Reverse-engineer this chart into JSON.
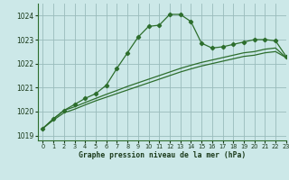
{
  "title": "Graphe pression niveau de la mer (hPa)",
  "background_color": "#cce8e8",
  "grid_color": "#99bbbb",
  "line_color": "#2d6e2d",
  "xlim": [
    -0.5,
    23
  ],
  "ylim": [
    1018.8,
    1024.5
  ],
  "yticks": [
    1019,
    1020,
    1021,
    1022,
    1023,
    1024
  ],
  "xticks": [
    0,
    1,
    2,
    3,
    4,
    5,
    6,
    7,
    8,
    9,
    10,
    11,
    12,
    13,
    14,
    15,
    16,
    17,
    18,
    19,
    20,
    21,
    22,
    23
  ],
  "series1_x": [
    0,
    1,
    2,
    3,
    4,
    5,
    6,
    7,
    8,
    9,
    10,
    11,
    12,
    13,
    14,
    15,
    16,
    17,
    18,
    19,
    20,
    21,
    22,
    23
  ],
  "series1_y": [
    1019.3,
    1019.7,
    1020.05,
    1020.3,
    1020.55,
    1020.75,
    1021.1,
    1021.8,
    1022.45,
    1023.1,
    1023.55,
    1023.6,
    1024.05,
    1024.05,
    1023.75,
    1022.85,
    1022.65,
    1022.7,
    1022.8,
    1022.9,
    1023.0,
    1023.0,
    1022.95,
    1022.3
  ],
  "series2_x": [
    0,
    1,
    2,
    3,
    4,
    5,
    6,
    7,
    8,
    9,
    10,
    11,
    12,
    13,
    14,
    15,
    16,
    17,
    18,
    19,
    20,
    21,
    22,
    23
  ],
  "series2_y": [
    1019.3,
    1019.65,
    1019.95,
    1020.1,
    1020.28,
    1020.45,
    1020.6,
    1020.75,
    1020.9,
    1021.05,
    1021.2,
    1021.35,
    1021.5,
    1021.65,
    1021.78,
    1021.9,
    1022.0,
    1022.1,
    1022.2,
    1022.3,
    1022.35,
    1022.45,
    1022.5,
    1022.25
  ],
  "series3_x": [
    0,
    1,
    2,
    3,
    4,
    5,
    6,
    7,
    8,
    9,
    10,
    11,
    12,
    13,
    14,
    15,
    16,
    17,
    18,
    19,
    20,
    21,
    22,
    23
  ],
  "series3_y": [
    1019.3,
    1019.7,
    1020.05,
    1020.2,
    1020.38,
    1020.55,
    1020.72,
    1020.88,
    1021.05,
    1021.2,
    1021.35,
    1021.5,
    1021.65,
    1021.8,
    1021.93,
    1022.05,
    1022.15,
    1022.25,
    1022.35,
    1022.45,
    1022.5,
    1022.6,
    1022.65,
    1022.25
  ]
}
